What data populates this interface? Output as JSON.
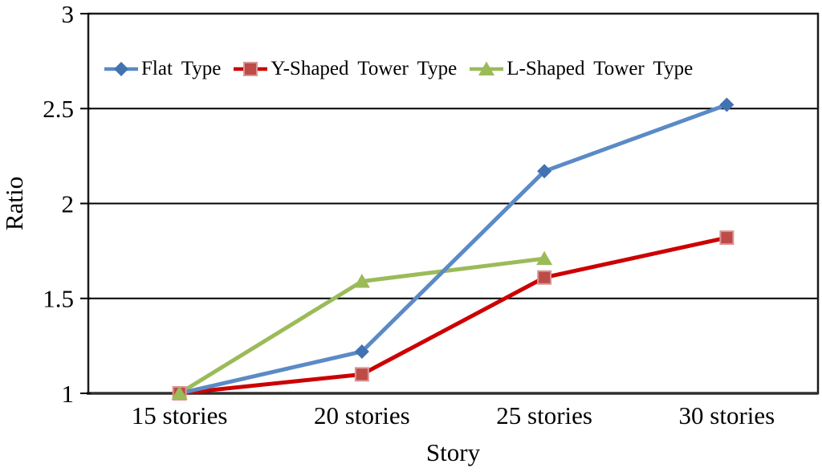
{
  "chart_data": {
    "type": "line",
    "title": "",
    "categories": [
      "15 stories",
      "20 stories",
      "25 stories",
      "30 stories"
    ],
    "series": [
      {
        "name": "Flat Type",
        "marker": "diamond",
        "line_color": "#5B8AC6",
        "marker_color": "#4173B2",
        "values": [
          1.0,
          1.22,
          2.17,
          2.52
        ]
      },
      {
        "name": "Y-Shaped Tower Type",
        "marker": "square",
        "line_color": "#CC0000",
        "marker_color": "#BE4B48",
        "marker_edge_color": "#D99694",
        "values": [
          1.0,
          1.1,
          1.61,
          1.82
        ]
      },
      {
        "name": "L-Shaped Tower Type",
        "marker": "triangle",
        "line_color": "#9BBB59",
        "marker_color": "#9BBB59",
        "values": [
          1.0,
          1.59,
          1.71,
          null
        ]
      }
    ],
    "xlabel": "Story",
    "ylabel": "Ratio",
    "ylim": [
      1,
      3
    ],
    "ytick_step": 0.5,
    "ytick_labels": [
      "1",
      "1.5",
      "2",
      "2.5",
      "3"
    ],
    "grid": true,
    "legend_position": "top-inside"
  },
  "colors": {
    "background": "#FFFFFF",
    "gridline": "#000000",
    "axis_frame": "#1A1A1A",
    "text": "#000000"
  }
}
